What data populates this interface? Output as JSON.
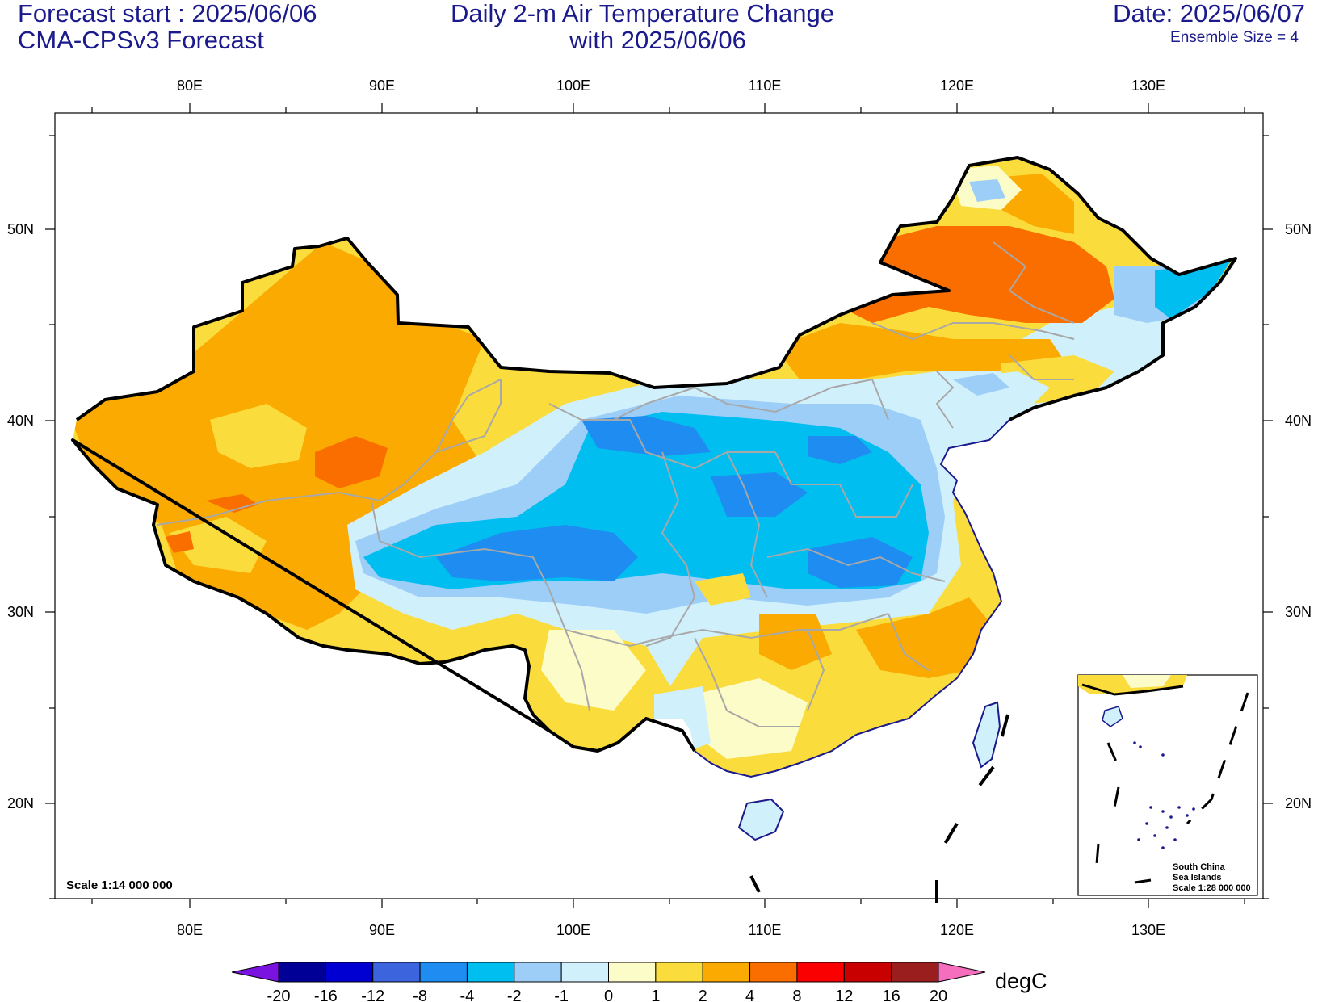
{
  "header": {
    "forecast_start": "Forecast start : 2025/06/06",
    "model": "CMA-CPSv3 Forecast",
    "title_line1": "Daily 2-m Air Temperature Change",
    "title_line2": "with 2025/06/06",
    "date": "Date: 2025/06/07",
    "ensemble": "Ensemble Size = 4"
  },
  "map": {
    "scale": "Scale 1:14 000 000",
    "inset_label": [
      "South China",
      "Sea Islands",
      "Scale 1:28 000 000"
    ],
    "lon_labels": [
      "80E",
      "90E",
      "100E",
      "110E",
      "120E",
      "130E"
    ],
    "lat_labels": [
      "50N",
      "40N",
      "30N",
      "20N"
    ]
  },
  "colorbar": {
    "unit": "degC",
    "levels": [
      "-20",
      "-16",
      "-12",
      "-8",
      "-4",
      "-2",
      "-1",
      "0",
      "1",
      "2",
      "4",
      "8",
      "12",
      "16",
      "20"
    ],
    "colors": [
      "#7a12e0",
      "#000096",
      "#0000d2",
      "#3c64dc",
      "#1e8cf0",
      "#00bef0",
      "#9ccef8",
      "#d0f0fc",
      "#fcfcc8",
      "#fadc3c",
      "#faaa00",
      "#fa6e00",
      "#fa0000",
      "#c80000",
      "#9b1e1e",
      "#f56ebe"
    ]
  }
}
